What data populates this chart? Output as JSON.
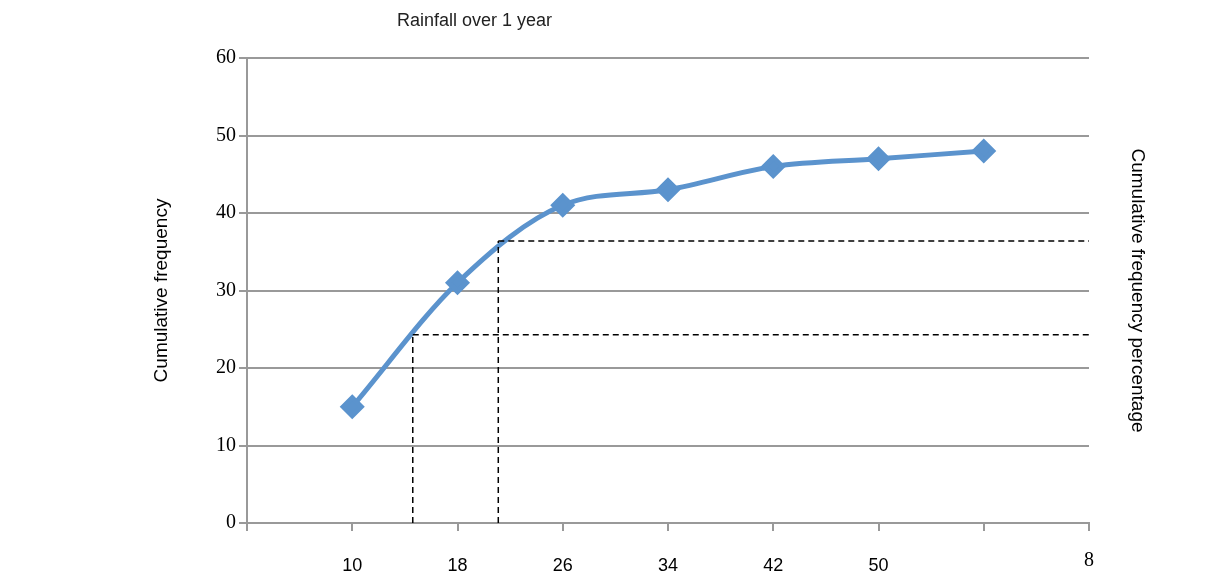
{
  "chart_data": {
    "type": "line",
    "title": "Rainfall over 1 year",
    "ylabel": "Cumulative frequency",
    "y2label": "Cumulative frequency percentage",
    "x": [
      10,
      18,
      26,
      34,
      42,
      50,
      58
    ],
    "xlim": [
      2,
      66
    ],
    "xticks": [
      {
        "value": 2,
        "label": null
      },
      10,
      18,
      26,
      34,
      42,
      50,
      {
        "value": 58,
        "label": null
      },
      {
        "value": 66,
        "label": null
      }
    ],
    "annotations": [
      "8"
    ],
    "ylim": [
      0,
      60
    ],
    "yticks": [
      0,
      10,
      20,
      30,
      40,
      50,
      60
    ],
    "series": [
      {
        "color": "#5b93cd",
        "values": [
          15,
          31,
          41,
          43,
          46,
          47,
          48
        ]
      }
    ],
    "marker": "diamond",
    "grid": "y",
    "legend": false,
    "ref_lines": [
      {
        "axis": "y",
        "value": 24.3,
        "line_style": "dashed",
        "color": "#000000"
      },
      {
        "axis": "y",
        "value": 36.4,
        "line_style": "dashed",
        "color": "#000000"
      },
      {
        "axis": "x",
        "value": 14.6,
        "line_style": "dashed",
        "color": "#000000"
      },
      {
        "axis": "x",
        "value": 21.1,
        "line_style": "dashed",
        "color": "#000000"
      }
    ]
  }
}
